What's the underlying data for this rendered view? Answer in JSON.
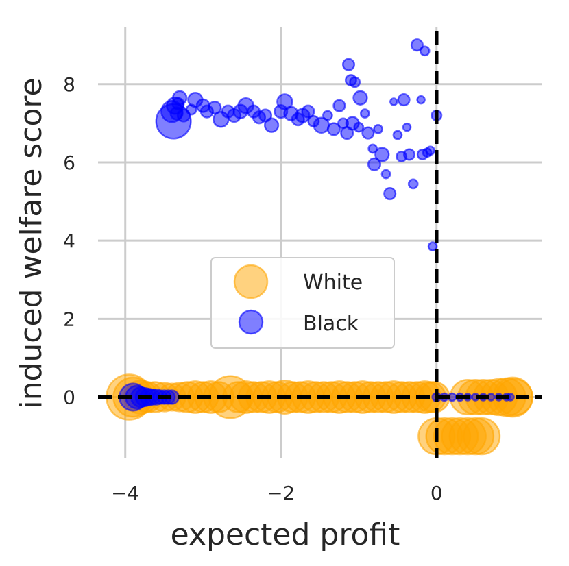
{
  "chart_data": {
    "type": "scatter",
    "xlabel": "expected profit",
    "ylabel": "induced welfare score",
    "xlim": [
      -4.35,
      1.35
    ],
    "ylim": [
      -1.55,
      9.45
    ],
    "xticks": [
      -4,
      -2,
      0
    ],
    "xtick_labels": [
      "−4",
      "−2",
      "0"
    ],
    "yticks": [
      0,
      2,
      4,
      6,
      8
    ],
    "ytick_labels": [
      "0",
      "2",
      "4",
      "6",
      "8"
    ],
    "grid": true,
    "legend": "center-left",
    "reference_lines": [
      {
        "orientation": "horizontal",
        "value": 0,
        "style": "dashed",
        "color": "#000000"
      },
      {
        "orientation": "vertical",
        "value": 0,
        "style": "dashed",
        "color": "#000000"
      }
    ],
    "series": [
      {
        "name": "White",
        "color": "#FFA500",
        "opacity": 0.5,
        "points": [
          [
            -3.95,
            0,
            3.0
          ],
          [
            -3.9,
            0,
            2.6
          ],
          [
            -3.8,
            0,
            2.2
          ],
          [
            -3.72,
            0,
            2.0
          ],
          [
            -3.62,
            0,
            2.0
          ],
          [
            -3.5,
            0,
            1.9
          ],
          [
            -3.4,
            0,
            1.8
          ],
          [
            -3.3,
            0,
            1.9
          ],
          [
            -3.2,
            0,
            2.0
          ],
          [
            -3.1,
            0,
            2.1
          ],
          [
            -3.0,
            0,
            2.0
          ],
          [
            -2.9,
            0,
            2.1
          ],
          [
            -2.8,
            0,
            2.0
          ],
          [
            -2.65,
            0,
            2.8
          ],
          [
            -2.55,
            0,
            2.0
          ],
          [
            -2.45,
            0,
            2.1
          ],
          [
            -2.35,
            0,
            2.0
          ],
          [
            -2.25,
            0,
            2.0
          ],
          [
            -2.15,
            0,
            2.1
          ],
          [
            -2.05,
            0,
            2.0
          ],
          [
            -1.95,
            0,
            2.2
          ],
          [
            -1.85,
            0,
            2.0
          ],
          [
            -1.75,
            0,
            2.0
          ],
          [
            -1.65,
            0,
            2.1
          ],
          [
            -1.55,
            0,
            2.0
          ],
          [
            -1.45,
            0,
            2.0
          ],
          [
            -1.35,
            0,
            2.0
          ],
          [
            -1.25,
            0,
            2.1
          ],
          [
            -1.15,
            0,
            2.0
          ],
          [
            -1.05,
            0,
            2.0
          ],
          [
            -0.95,
            0,
            2.1
          ],
          [
            -0.85,
            0,
            2.0
          ],
          [
            -0.75,
            0,
            2.0
          ],
          [
            -0.65,
            0,
            2.0
          ],
          [
            -0.55,
            0,
            2.1
          ],
          [
            -0.45,
            0,
            2.0
          ],
          [
            -0.35,
            0,
            2.0
          ],
          [
            -0.25,
            0,
            2.0
          ],
          [
            -0.15,
            0,
            2.1
          ],
          [
            -0.08,
            0,
            2.0
          ],
          [
            -0.03,
            0,
            2.0
          ],
          [
            0.0,
            -1.0,
            2.4
          ],
          [
            0.1,
            -1.0,
            2.4
          ],
          [
            0.2,
            -1.0,
            2.4
          ],
          [
            0.3,
            -1.0,
            2.4
          ],
          [
            0.4,
            -1.0,
            2.4
          ],
          [
            0.5,
            -1.0,
            2.4
          ],
          [
            0.58,
            -1.0,
            2.4
          ],
          [
            0.4,
            0,
            2.3
          ],
          [
            0.5,
            0,
            2.3
          ],
          [
            0.6,
            0,
            2.3
          ],
          [
            0.7,
            0,
            2.3
          ],
          [
            0.8,
            0,
            2.4
          ],
          [
            0.9,
            0,
            2.5
          ],
          [
            0.98,
            0,
            2.6
          ],
          [
            1.0,
            0,
            2.4
          ]
        ]
      },
      {
        "name": "Black",
        "color": "#0000FF",
        "opacity": 0.5,
        "points": [
          [
            -3.9,
            0,
            1.8
          ],
          [
            -3.85,
            0,
            1.5
          ],
          [
            -3.8,
            0,
            1.3
          ],
          [
            -3.75,
            0,
            1.2
          ],
          [
            -3.7,
            0,
            1.1
          ],
          [
            -3.65,
            0,
            1.0
          ],
          [
            -3.6,
            0,
            1.0
          ],
          [
            -3.55,
            0,
            0.9
          ],
          [
            -3.5,
            0,
            0.9
          ],
          [
            -3.45,
            0,
            0.9
          ],
          [
            -3.4,
            0,
            0.9
          ],
          [
            0.0,
            0,
            0.55
          ],
          [
            0.1,
            0,
            0.5
          ],
          [
            0.2,
            0,
            0.5
          ],
          [
            0.3,
            0,
            0.5
          ],
          [
            0.4,
            0,
            0.45
          ],
          [
            0.5,
            0,
            0.45
          ],
          [
            0.6,
            0,
            0.45
          ],
          [
            0.7,
            0,
            0.45
          ],
          [
            0.8,
            0,
            0.45
          ],
          [
            0.9,
            0,
            0.45
          ],
          [
            0.95,
            0,
            0.45
          ],
          [
            -3.4,
            7.3,
            1.4
          ],
          [
            -3.38,
            7.05,
            2.3
          ],
          [
            -3.36,
            7.45,
            1.1
          ],
          [
            -3.34,
            7.25,
            0.8
          ],
          [
            -3.32,
            7.5,
            0.75
          ],
          [
            -3.3,
            7.65,
            0.9
          ],
          [
            -3.25,
            7.2,
            0.8
          ],
          [
            -3.15,
            7.35,
            0.65
          ],
          [
            -3.1,
            7.6,
            0.95
          ],
          [
            -3.0,
            7.45,
            0.85
          ],
          [
            -2.95,
            7.3,
            0.8
          ],
          [
            -2.85,
            7.4,
            0.8
          ],
          [
            -2.77,
            7.1,
            1.0
          ],
          [
            -2.68,
            7.3,
            0.8
          ],
          [
            -2.6,
            7.2,
            0.85
          ],
          [
            -2.52,
            7.3,
            0.9
          ],
          [
            -2.45,
            7.45,
            1.0
          ],
          [
            -2.35,
            7.3,
            0.8
          ],
          [
            -2.28,
            7.15,
            0.8
          ],
          [
            -2.2,
            7.2,
            0.8
          ],
          [
            -2.12,
            6.95,
            0.9
          ],
          [
            -2.0,
            7.3,
            0.85
          ],
          [
            -1.95,
            7.55,
            1.0
          ],
          [
            -1.87,
            7.25,
            0.9
          ],
          [
            -1.78,
            7.1,
            0.8
          ],
          [
            -1.72,
            7.2,
            0.9
          ],
          [
            -1.65,
            7.3,
            0.8
          ],
          [
            -1.58,
            7.05,
            0.7
          ],
          [
            -1.48,
            6.95,
            1.0
          ],
          [
            -1.4,
            7.2,
            0.6
          ],
          [
            -1.32,
            6.85,
            0.8
          ],
          [
            -1.25,
            7.45,
            0.75
          ],
          [
            -1.2,
            7.0,
            0.65
          ],
          [
            -1.15,
            6.75,
            0.8
          ],
          [
            -1.08,
            7.0,
            0.85
          ],
          [
            -1.0,
            6.9,
            0.6
          ],
          [
            -1.13,
            8.5,
            0.75
          ],
          [
            -1.1,
            8.1,
            0.7
          ],
          [
            -1.05,
            8.05,
            0.65
          ],
          [
            -0.98,
            7.65,
            0.9
          ],
          [
            -0.92,
            7.25,
            0.55
          ],
          [
            -0.88,
            6.75,
            0.75
          ],
          [
            -0.82,
            6.35,
            0.55
          ],
          [
            -0.8,
            5.95,
            0.8
          ],
          [
            -0.75,
            6.85,
            0.55
          ],
          [
            -0.7,
            6.2,
            0.9
          ],
          [
            -0.65,
            5.7,
            0.55
          ],
          [
            -0.6,
            5.2,
            0.75
          ],
          [
            -0.55,
            7.55,
            0.45
          ],
          [
            -0.5,
            6.7,
            0.55
          ],
          [
            -0.45,
            6.15,
            0.65
          ],
          [
            -0.42,
            7.6,
            0.75
          ],
          [
            -0.38,
            6.9,
            0.5
          ],
          [
            -0.35,
            6.2,
            0.7
          ],
          [
            -0.3,
            5.45,
            0.6
          ],
          [
            -0.25,
            9.0,
            0.75
          ],
          [
            -0.2,
            7.6,
            0.5
          ],
          [
            -0.15,
            8.85,
            0.6
          ],
          [
            -0.18,
            6.2,
            0.65
          ],
          [
            -0.12,
            6.25,
            0.55
          ],
          [
            -0.08,
            6.3,
            0.55
          ],
          [
            -0.05,
            3.85,
            0.55
          ],
          [
            0.0,
            7.2,
            0.65
          ]
        ]
      }
    ]
  }
}
